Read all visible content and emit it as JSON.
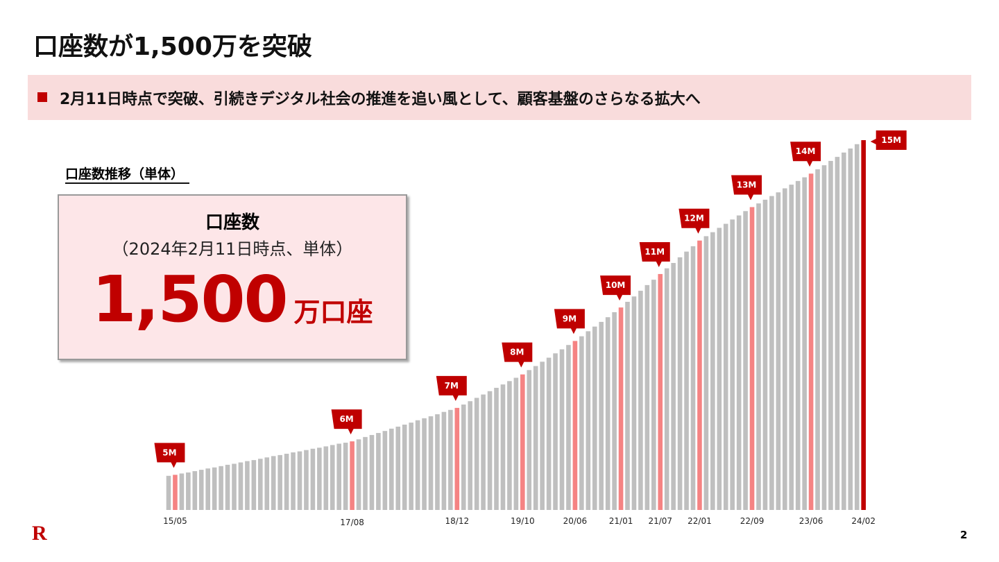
{
  "header": {
    "title": "口座数が1,500万を突破",
    "banner": "2月11日時点で突破、引続きデジタル社会の推進を追い風として、顧客基盤のさらなる拡大へ"
  },
  "highlight_box": {
    "heading": "口座数",
    "note": "（2024年2月11日時点、単体）",
    "figure": "1,500",
    "unit": "万口座"
  },
  "footer": {
    "logo": "R",
    "page": "2"
  },
  "chart_data": {
    "type": "bar",
    "title": "口座数推移（単体）",
    "categories": [
      null,
      "15/05",
      null,
      null,
      null,
      null,
      null,
      null,
      null,
      null,
      null,
      null,
      null,
      null,
      null,
      null,
      null,
      null,
      null,
      null,
      null,
      null,
      null,
      null,
      null,
      null,
      null,
      null,
      "17/08",
      null,
      null,
      null,
      null,
      null,
      null,
      null,
      null,
      null,
      null,
      null,
      null,
      null,
      null,
      null,
      "18/12",
      null,
      null,
      null,
      null,
      null,
      null,
      null,
      null,
      null,
      "19/10",
      null,
      null,
      null,
      null,
      null,
      null,
      null,
      "20/06",
      null,
      null,
      null,
      null,
      null,
      null,
      "21/01",
      null,
      null,
      null,
      null,
      null,
      "21/07",
      null,
      null,
      null,
      null,
      null,
      "22/01",
      null,
      null,
      null,
      null,
      null,
      null,
      null,
      "22/09",
      null,
      null,
      null,
      null,
      null,
      null,
      null,
      null,
      "23/06",
      null,
      null,
      null,
      null,
      null,
      null,
      null,
      "24/02"
    ],
    "values": [
      4.97,
      5,
      5.04,
      5.07,
      5.11,
      5.15,
      5.19,
      5.22,
      5.26,
      5.3,
      5.33,
      5.37,
      5.41,
      5.44,
      5.48,
      5.52,
      5.56,
      5.59,
      5.63,
      5.67,
      5.7,
      5.74,
      5.78,
      5.81,
      5.85,
      5.89,
      5.93,
      5.96,
      6,
      6.06,
      6.13,
      6.19,
      6.25,
      6.31,
      6.38,
      6.44,
      6.5,
      6.56,
      6.63,
      6.69,
      6.75,
      6.81,
      6.88,
      6.94,
      7,
      7.1,
      7.2,
      7.3,
      7.4,
      7.5,
      7.6,
      7.7,
      7.8,
      7.9,
      8,
      8.13,
      8.25,
      8.38,
      8.5,
      8.63,
      8.75,
      8.88,
      9,
      9.14,
      9.29,
      9.43,
      9.57,
      9.71,
      9.86,
      10,
      10.17,
      10.33,
      10.5,
      10.67,
      10.83,
      11,
      11.17,
      11.33,
      11.5,
      11.67,
      11.83,
      12,
      12.13,
      12.25,
      12.38,
      12.5,
      12.63,
      12.75,
      12.88,
      13,
      13.11,
      13.22,
      13.33,
      13.44,
      13.56,
      13.67,
      13.78,
      13.89,
      14,
      14.13,
      14.25,
      14.38,
      14.5,
      14.63,
      14.75,
      14.88,
      15
    ],
    "value_labels": [
      null,
      "5M",
      null,
      null,
      null,
      null,
      null,
      null,
      null,
      null,
      null,
      null,
      null,
      null,
      null,
      null,
      null,
      null,
      null,
      null,
      null,
      null,
      null,
      null,
      null,
      null,
      null,
      null,
      "6M",
      null,
      null,
      null,
      null,
      null,
      null,
      null,
      null,
      null,
      null,
      null,
      null,
      null,
      null,
      null,
      "7M",
      null,
      null,
      null,
      null,
      null,
      null,
      null,
      null,
      null,
      "8M",
      null,
      null,
      null,
      null,
      null,
      null,
      null,
      "9M",
      null,
      null,
      null,
      null,
      null,
      null,
      "10M",
      null,
      null,
      null,
      null,
      null,
      "11M",
      null,
      null,
      null,
      null,
      null,
      "12M",
      null,
      null,
      null,
      null,
      null,
      null,
      null,
      "13M",
      null,
      null,
      null,
      null,
      null,
      null,
      null,
      null,
      "14M",
      null,
      null,
      null,
      null,
      null,
      null,
      null,
      "15M"
    ],
    "ylim": [
      3.95,
      15
    ],
    "color": "#bfbfbf",
    "highlight_color": "#f58383",
    "latest_color": "#c00000",
    "label_color": "#bf0000"
  }
}
